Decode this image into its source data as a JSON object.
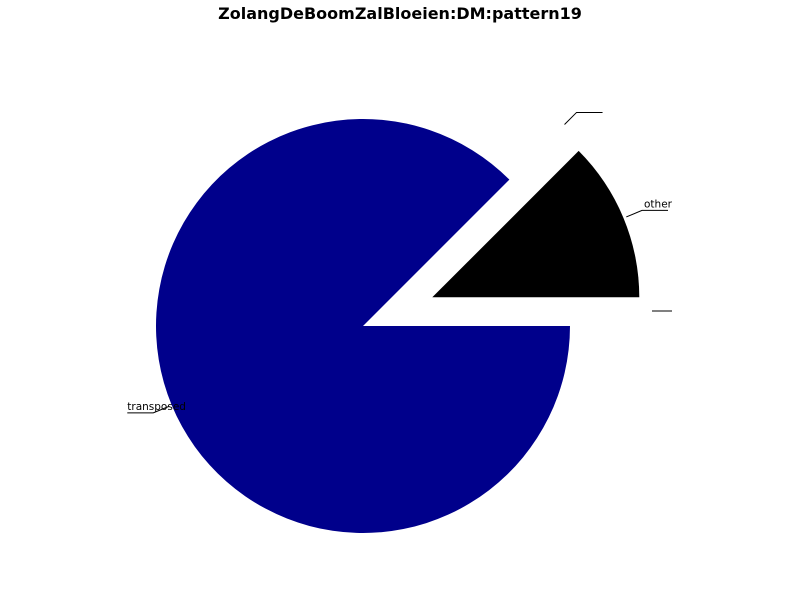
{
  "chart_data": {
    "type": "pie",
    "title": "ZolangDeBoomZalBloeien:DM:pattern19",
    "slices": [
      {
        "label": "transposed",
        "value": 87.5,
        "color": "#00008b",
        "exploded": false
      },
      {
        "label": "other",
        "value": 12.5,
        "color": "#000000",
        "exploded": true
      },
      {
        "label": "",
        "value": 0,
        "color": "#000000",
        "exploded": true
      }
    ],
    "legend": "none"
  }
}
